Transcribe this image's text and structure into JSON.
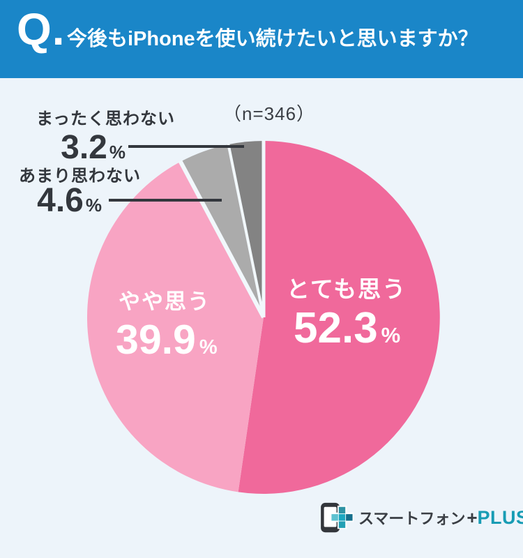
{
  "header": {
    "q_label": "Q.",
    "title": "今後もiPhoneを使い続けたいと思いますか？",
    "bg_color": "#1a86c8"
  },
  "sample_size_label": "（n=346）",
  "percent_sign": "%",
  "chart_data": {
    "type": "pie",
    "title": "今後もiPhoneを使い続けたいと思いますか？",
    "n": 346,
    "unit": "%",
    "start_angle_deg": 0,
    "direction": "clockwise",
    "legend": "none (labels on slices and outside callouts)",
    "background_color": "#edf4fa",
    "separator_color": "#f2f8fc",
    "callout_line_color": "#33373d",
    "slices": [
      {
        "label": "とても思う",
        "value_pct": 52.3,
        "color": "#f0699b",
        "label_placement": "inside",
        "label_color": "#ffffff"
      },
      {
        "label": "やや思う",
        "value_pct": 39.9,
        "color": "#f8a4c3",
        "label_placement": "inside",
        "label_color": "#ffffff"
      },
      {
        "label": "あまり思わない",
        "value_pct": 4.6,
        "color": "#ababab",
        "label_placement": "outside-left",
        "label_color": "#33373d"
      },
      {
        "label": "まったく思わない",
        "value_pct": 3.2,
        "color": "#838383",
        "label_placement": "outside-left",
        "label_color": "#33373d"
      }
    ]
  },
  "logo": {
    "text": "スマートフォン",
    "plus": "+",
    "suffix": "PLUS",
    "accent_color": "#189cb4",
    "icon": "smartphone-with-plus"
  }
}
